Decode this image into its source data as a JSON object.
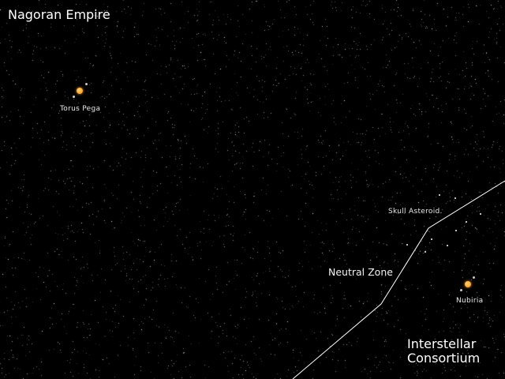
{
  "factions": {
    "nagoran": "Nagoran Empire",
    "interstellar_line1": "Interstellar",
    "interstellar_line2": "Consortium"
  },
  "zones": {
    "neutral": "Neutral Zone"
  },
  "systems": [
    {
      "id": "torus-pega",
      "name": "Torus Pega",
      "type": "star-system"
    },
    {
      "id": "skull-asteroid",
      "name": "Skull Asteroid.",
      "type": "asteroid-field"
    },
    {
      "id": "nubiria",
      "name": "Nubiria",
      "type": "star-system"
    }
  ],
  "colors": {
    "space": "#000000",
    "star": "#ffad33",
    "border_line": "#ffffff",
    "text": "#ffffff"
  }
}
